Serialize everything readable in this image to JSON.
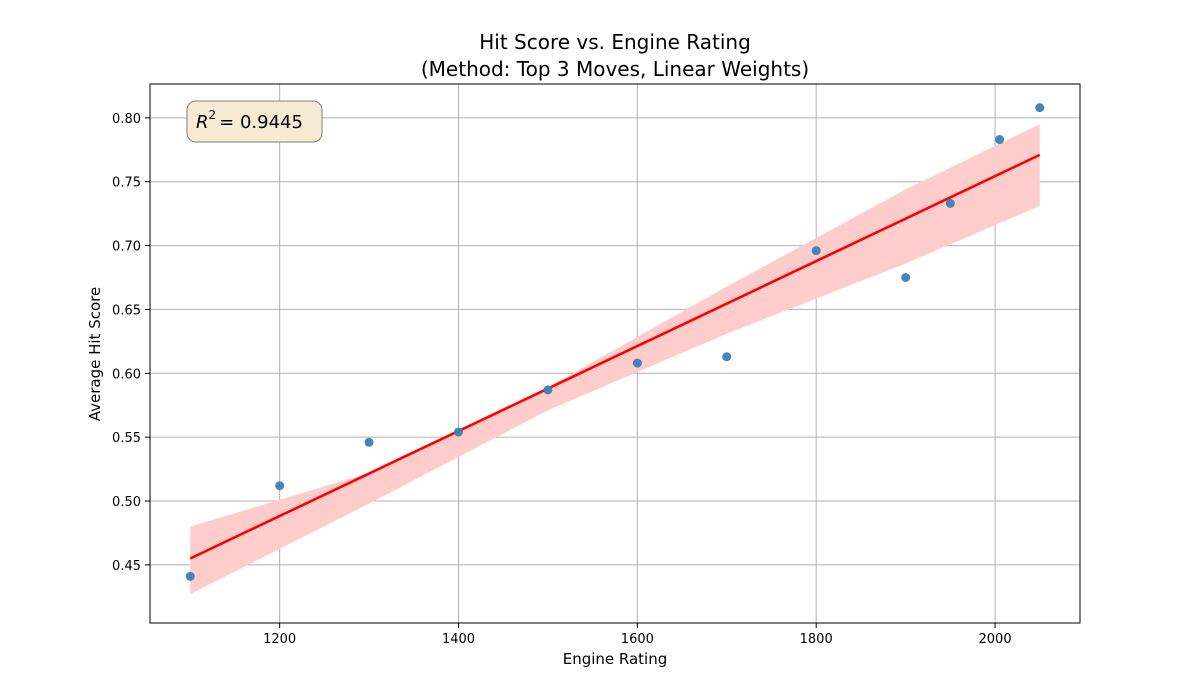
{
  "chart_data": {
    "type": "scatter",
    "title_line1": "Hit Score vs. Engine Rating",
    "title_line2": "(Method: Top 3 Moves, Linear Weights)",
    "xlabel": "Engine Rating",
    "ylabel": "Average Hit Score",
    "xlim": [
      1055,
      2095
    ],
    "ylim": [
      0.4045,
      0.8265
    ],
    "x_ticks": [
      1200,
      1400,
      1600,
      1800,
      2000
    ],
    "y_ticks": [
      0.45,
      0.5,
      0.55,
      0.6,
      0.65,
      0.7,
      0.75,
      0.8
    ],
    "x_tick_labels": [
      "1200",
      "1400",
      "1600",
      "1800",
      "2000"
    ],
    "y_tick_labels": [
      "0.45",
      "0.50",
      "0.55",
      "0.60",
      "0.65",
      "0.70",
      "0.75",
      "0.80"
    ],
    "grid": true,
    "points": [
      {
        "x": 1100,
        "y": 0.441
      },
      {
        "x": 1200,
        "y": 0.512
      },
      {
        "x": 1300,
        "y": 0.546
      },
      {
        "x": 1400,
        "y": 0.554
      },
      {
        "x": 1500,
        "y": 0.587
      },
      {
        "x": 1600,
        "y": 0.608
      },
      {
        "x": 1700,
        "y": 0.613
      },
      {
        "x": 1800,
        "y": 0.696
      },
      {
        "x": 1900,
        "y": 0.675
      },
      {
        "x": 1950,
        "y": 0.733
      },
      {
        "x": 2005,
        "y": 0.783
      },
      {
        "x": 2050,
        "y": 0.808
      }
    ],
    "fit_line": {
      "x": [
        1100,
        2050
      ],
      "y": [
        0.455,
        0.771
      ]
    },
    "confidence_band": {
      "x": [
        1100,
        1300,
        1500,
        1700,
        1900,
        2050
      ],
      "lower": [
        0.427,
        0.498,
        0.571,
        0.631,
        0.686,
        0.731
      ],
      "upper": [
        0.48,
        0.522,
        0.589,
        0.668,
        0.744,
        0.795
      ]
    },
    "annotation": {
      "r2_symbol": "R",
      "r2_superscript": "2",
      "r2_value": "= 0.9445"
    },
    "colors": {
      "points": "#3a7fb4",
      "fit_line": "#ff0000",
      "band": "#ffcccc",
      "grid": "#b0b0b0",
      "annotation_fill": "#f8ebd5",
      "annotation_stroke": "#7f7f7f"
    }
  }
}
